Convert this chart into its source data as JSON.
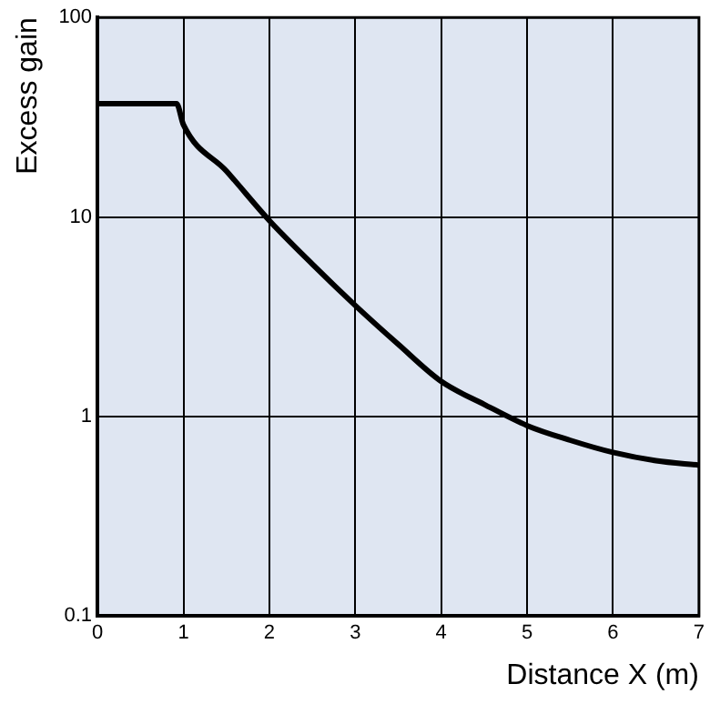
{
  "chart_data": {
    "type": "line",
    "xlabel": "Distance X (m)",
    "ylabel": "Excess gain",
    "log": "y",
    "grid": true,
    "marker": "none",
    "line_style": "solid",
    "x": [
      0,
      0.92,
      1,
      1.5,
      2,
      2.5,
      3,
      3.5,
      4,
      4.5,
      5,
      5.5,
      6,
      6.5,
      7
    ],
    "series": [
      {
        "color": "#000000",
        "values": [
          37,
          37,
          29,
          17,
          9.6,
          5.8,
          3.6,
          2.3,
          1.5,
          1.15,
          0.9,
          0.76,
          0.66,
          0.6,
          0.57
        ]
      }
    ],
    "xlim": [
      0,
      7
    ],
    "xticks": [
      0,
      1,
      2,
      3,
      4,
      5,
      6,
      7
    ],
    "ylim": [
      0.1,
      100
    ],
    "yticks": [
      0.1,
      1,
      10,
      100
    ]
  }
}
